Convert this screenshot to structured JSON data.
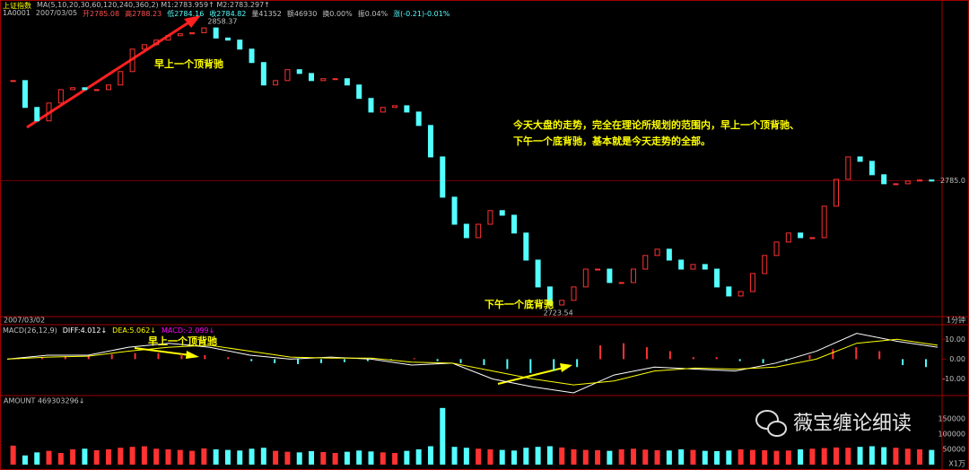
{
  "chart_data": [
    {
      "type": "candlestick",
      "title": "上证指数",
      "subtitle": "MA(5,10,20,30,60,120,240,360,2) M1:2783.959↑ M2:2783.297↑",
      "info": [
        "1A0001",
        "2007/03/05",
        "开2785.08",
        "高2788.23",
        "低2784.16",
        "收2784.82",
        "量41352",
        "额46930",
        "换0.00%",
        "振0.04%",
        "涨(-0.21)-0.01%"
      ],
      "values": [
        2832.7,
        2819.9,
        2813.5,
        2822.0,
        2828.4,
        2829.3,
        2828.4,
        2828.4,
        2830.6,
        2837.0,
        2847.7,
        2849.8,
        2852.0,
        2854.1,
        2855.0,
        2855.5,
        2857.8,
        2853.0,
        2852.0,
        2847.7,
        2841.3,
        2830.6,
        2832.7,
        2837.9,
        2836.1,
        2832.7,
        2833.6,
        2833.6,
        2830.6,
        2824.2,
        2817.7,
        2819.9,
        2820.7,
        2817.7,
        2811.3,
        2796.3,
        2777.1,
        2764.2,
        2757.8,
        2764.2,
        2770.7,
        2768.5,
        2760.0,
        2747.1,
        2734.3,
        2725.7,
        2727.9,
        2734.3,
        2742.8,
        2742.8,
        2736.4,
        2736.4,
        2742.8,
        2749.3,
        2752.3,
        2747.1,
        2742.8,
        2745.0,
        2742.8,
        2734.3,
        2730.0,
        2732.1,
        2740.7,
        2749.3,
        2755.7,
        2760.0,
        2757.8,
        2757.8,
        2772.8,
        2785.6,
        2796.3,
        2794.2,
        2787.8,
        2783.5,
        2783.5,
        2784.8,
        2785.3,
        2784.8
      ],
      "up_color": "#ff3232",
      "down_color": "#54ffff",
      "high_label": 2858.37,
      "low_label": 2723.54,
      "ylim": [
        2721,
        2863
      ],
      "yticks": [
        {
          "value": 2785,
          "label": "2785.0"
        }
      ],
      "annotations": [
        "早上一个顶背驰",
        "今天大盘的走势，完全在理论所规划的范围内，早上一个顶背驰、",
        "下午一个底背驰，基本就是今天走势的全部。",
        "下午一个底背驰"
      ]
    },
    {
      "type": "macd",
      "date": "2007/03/02",
      "title": "MACD(26,12,9)",
      "period": "1分钟",
      "series": [
        {
          "name": "DIFF:4.012↓",
          "color": "#ffffff",
          "values": [
            0,
            2,
            2,
            6,
            8,
            6,
            2,
            0,
            1,
            0,
            -3,
            -2,
            -10,
            -14,
            -17,
            -8,
            -4,
            -5,
            -6,
            -2,
            4,
            13,
            9,
            6
          ]
        },
        {
          "name": "DEA:5.062↓",
          "color": "#ffff00",
          "values": [
            0,
            1,
            1.5,
            4,
            6,
            7,
            4,
            1,
            0.5,
            0.5,
            -1.5,
            -2,
            -6,
            -10,
            -13,
            -11,
            -6,
            -4.5,
            -5,
            -4,
            0,
            8,
            10,
            7
          ]
        }
      ],
      "histogram": {
        "name": "MACD:-2.099↓",
        "color": "#ff00ff",
        "up_color": "#ff3232",
        "down_color": "#54ffff",
        "values": [
          0.5,
          1,
          1.5,
          2,
          2.5,
          3,
          3,
          2.5,
          2,
          1,
          -1,
          -2,
          -2.5,
          -2,
          -1.5,
          -1,
          -0.5,
          0.5,
          -1,
          -2,
          -3,
          -5,
          -7,
          -6,
          -4,
          7,
          8,
          6,
          4,
          1,
          1,
          -1,
          -2,
          -1,
          2,
          5,
          6,
          4,
          -3,
          -4
        ]
      },
      "ylim": [
        -17,
        16
      ],
      "yticks": [
        {
          "value": 10,
          "label": "10.00"
        },
        {
          "value": 0,
          "label": "0.00"
        },
        {
          "value": -10,
          "label": "-10.00"
        }
      ],
      "annotation": "早上一个顶背驰"
    },
    {
      "type": "bar",
      "title": "AMOUNT 469303296↓",
      "unit": "X1万",
      "values": [
        62000,
        30000,
        40000,
        45000,
        38000,
        50000,
        52000,
        47000,
        50000,
        55000,
        58000,
        60000,
        52000,
        50000,
        48000,
        45000,
        53000,
        50000,
        48000,
        46000,
        52000,
        55000,
        45000,
        42000,
        40000,
        44000,
        41000,
        38000,
        42000,
        46000,
        43000,
        40000,
        38000,
        45000,
        50000,
        60000,
        185000,
        58000,
        55000,
        52000,
        50000,
        48000,
        46000,
        55000,
        58000,
        60000,
        56000,
        50000,
        48000,
        47000,
        45000,
        50000,
        52000,
        49000,
        47000,
        46000,
        50000,
        48000,
        45000,
        44000,
        46000,
        50000,
        48000,
        47000,
        45000,
        46000,
        50000,
        52000,
        54000,
        56000,
        55000,
        58000,
        60000,
        57000,
        55000,
        52000,
        50000,
        48000
      ],
      "ylim": [
        0,
        205000
      ],
      "yticks": [
        150000,
        100000,
        50000
      ]
    }
  ],
  "watermark": "薇宝缠论细读"
}
